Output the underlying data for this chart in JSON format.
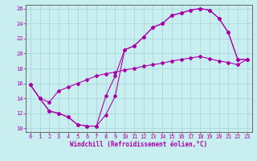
{
  "xlabel": "Windchill (Refroidissement éolien,°C)",
  "bg_color": "#c8eef0",
  "line_color": "#aa00aa",
  "grid_color": "#aad8dc",
  "xmin": -0.5,
  "xmax": 23.5,
  "ymin": 9.5,
  "ymax": 26.5,
  "curve1_x": [
    0,
    1,
    2,
    3,
    4,
    5,
    6,
    7,
    8,
    9,
    10,
    11,
    12,
    13,
    14,
    15,
    16,
    17,
    18,
    19,
    20,
    21,
    22,
    23
  ],
  "curve1_y": [
    15.8,
    14.0,
    13.5,
    15.0,
    15.5,
    16.0,
    16.5,
    17.0,
    17.3,
    17.5,
    17.8,
    18.0,
    18.3,
    18.5,
    18.7,
    19.0,
    19.2,
    19.4,
    19.6,
    19.3,
    19.0,
    18.8,
    18.5,
    19.2
  ],
  "curve2_x": [
    0,
    1,
    2,
    3,
    4,
    5,
    6,
    7,
    8,
    9,
    10,
    11,
    12,
    13,
    14,
    15,
    16,
    17,
    18,
    19,
    20,
    21,
    22,
    23
  ],
  "curve2_y": [
    15.8,
    14.0,
    12.3,
    12.0,
    11.5,
    10.5,
    10.3,
    10.3,
    14.3,
    17.0,
    20.5,
    21.0,
    22.2,
    23.5,
    24.0,
    25.1,
    25.4,
    25.8,
    26.0,
    25.8,
    24.7,
    22.8,
    19.2,
    19.2
  ],
  "curve3_x": [
    0,
    1,
    2,
    3,
    4,
    5,
    6,
    7,
    8,
    9,
    10,
    11,
    12,
    13,
    14,
    15,
    16,
    17,
    18,
    19,
    20,
    21,
    22,
    23
  ],
  "curve3_y": [
    15.8,
    14.0,
    12.3,
    12.0,
    11.5,
    10.5,
    10.3,
    10.3,
    11.8,
    14.3,
    20.5,
    21.0,
    22.2,
    23.5,
    24.0,
    25.1,
    25.4,
    25.8,
    26.0,
    25.8,
    24.7,
    22.8,
    19.2,
    19.2
  ],
  "xticks": [
    0,
    1,
    2,
    3,
    4,
    5,
    6,
    7,
    8,
    9,
    10,
    11,
    12,
    13,
    14,
    15,
    16,
    17,
    18,
    19,
    20,
    21,
    22,
    23
  ],
  "yticks": [
    10,
    12,
    14,
    16,
    18,
    20,
    22,
    24,
    26
  ],
  "tick_fontsize": 5,
  "xlabel_fontsize": 5.5
}
